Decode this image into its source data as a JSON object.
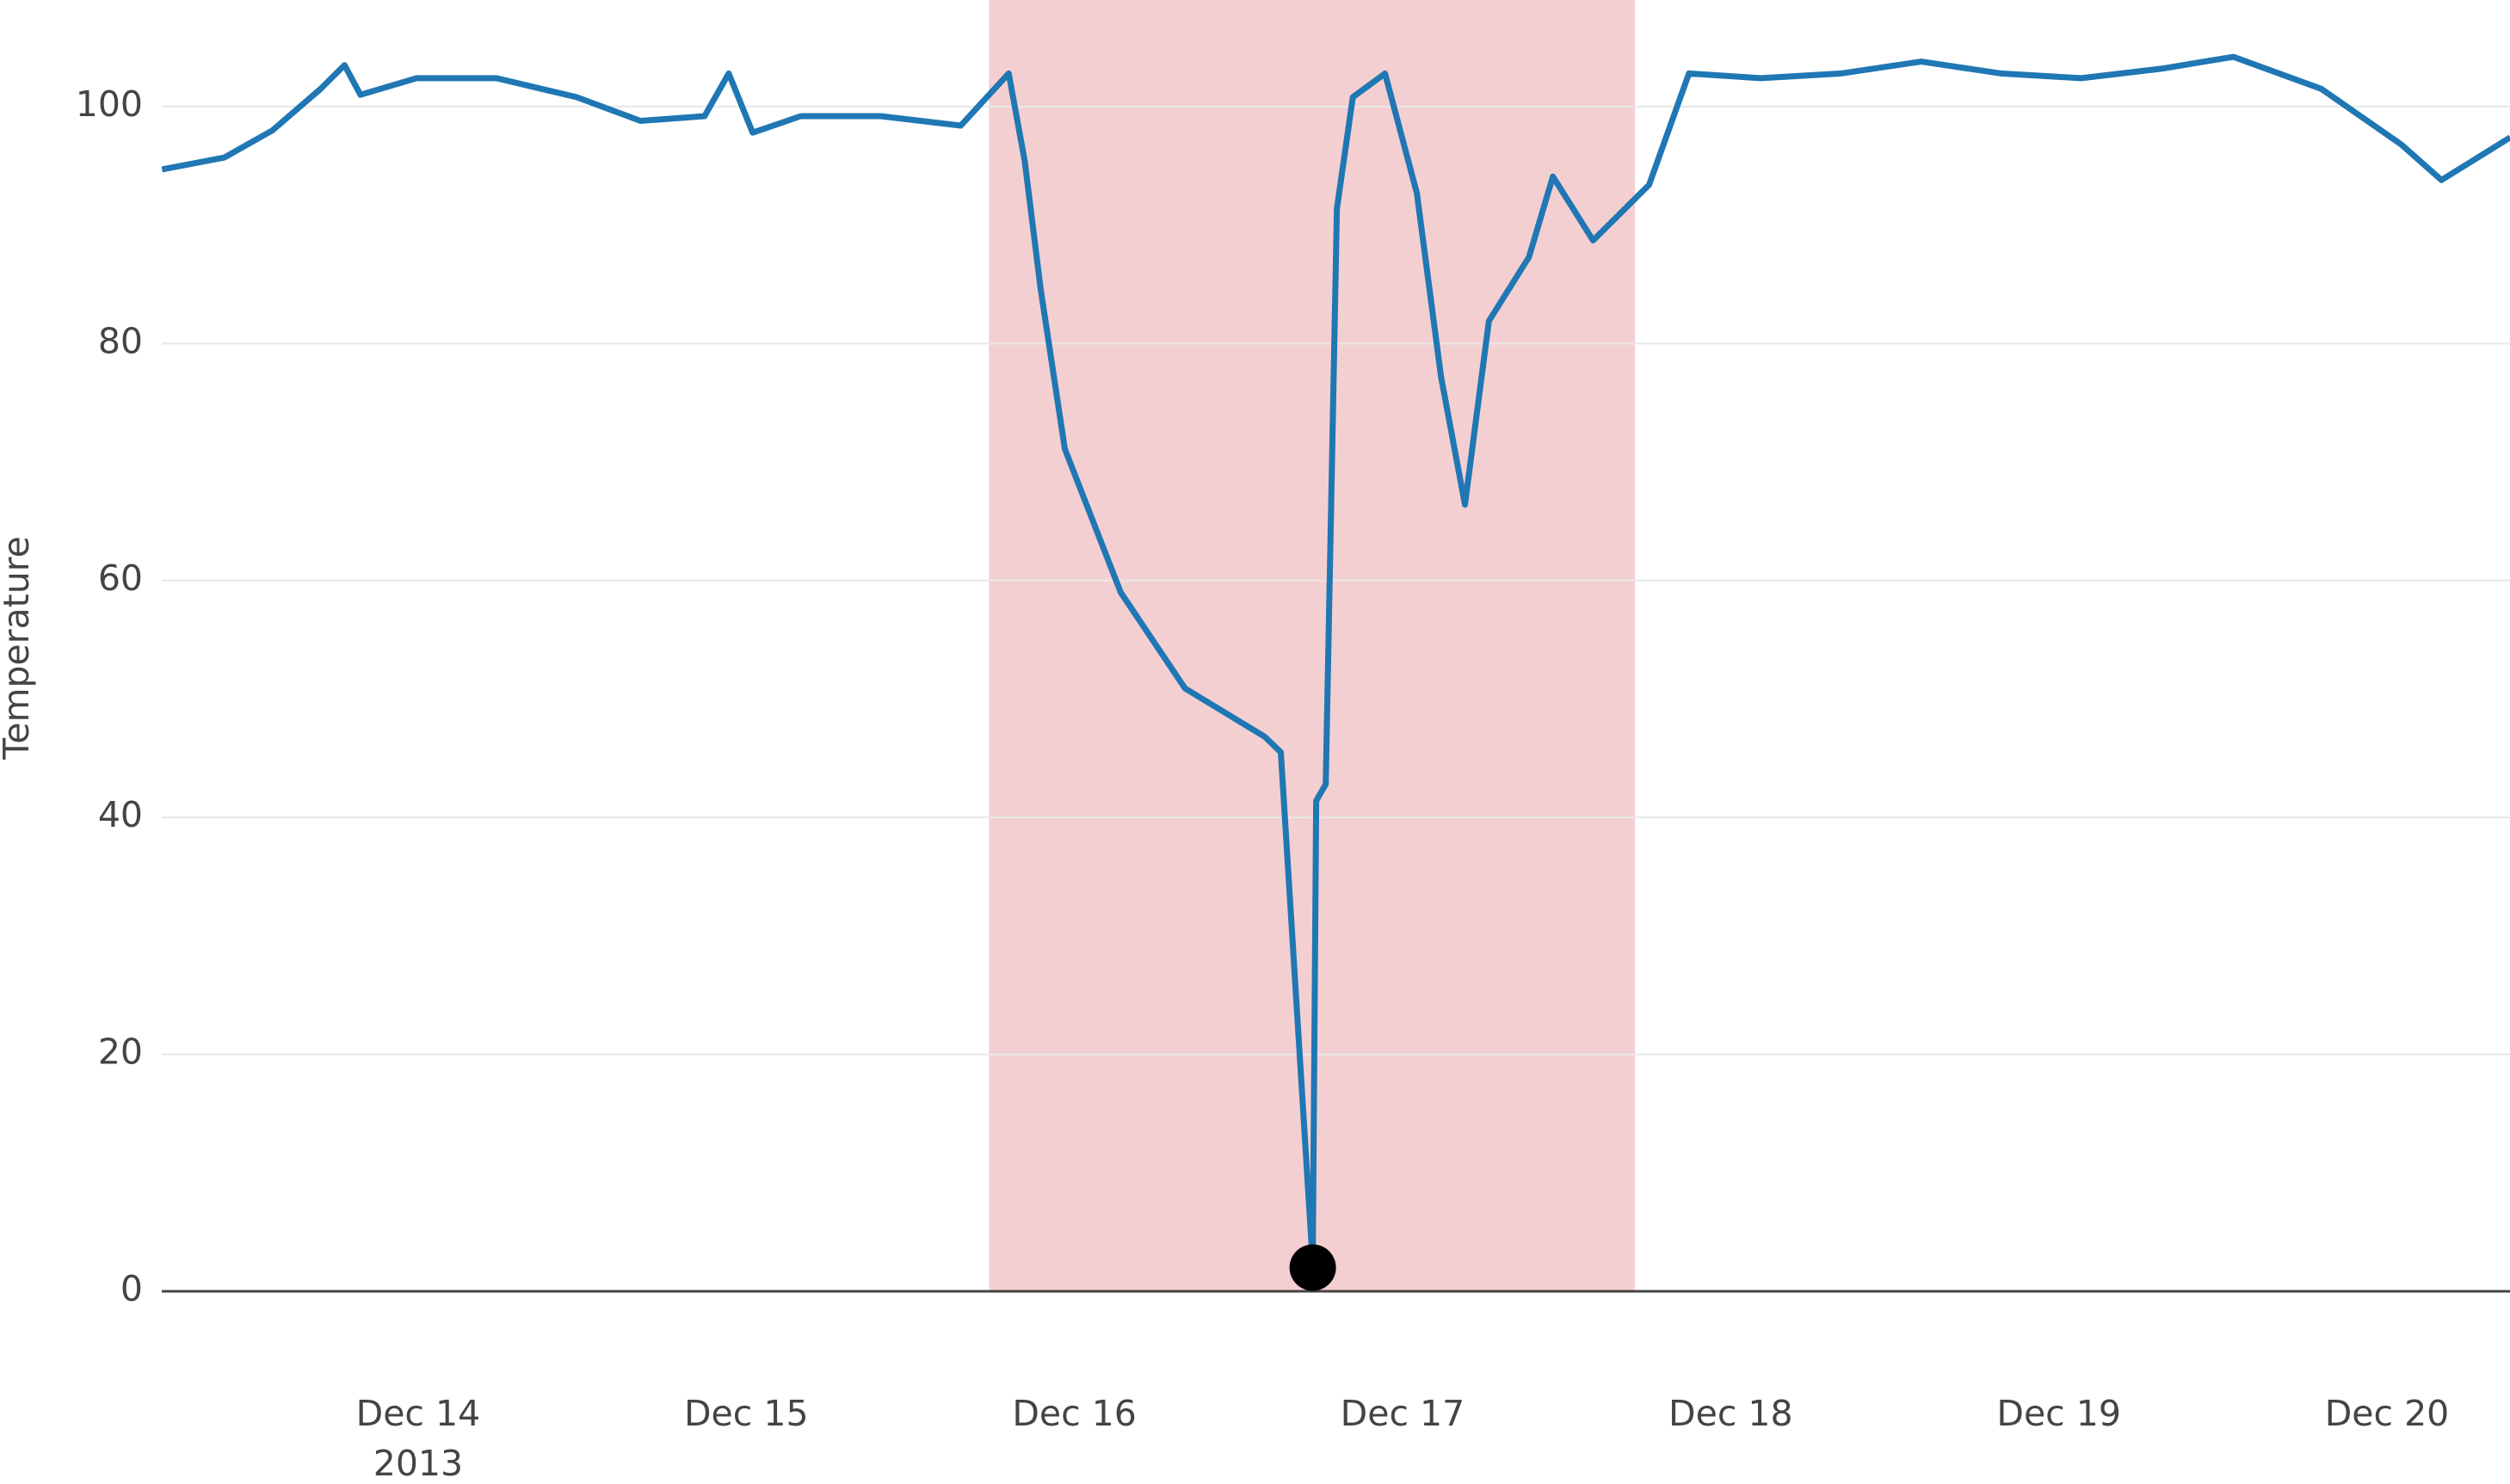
{
  "chart_data": {
    "type": "line",
    "y_label": "Temperature",
    "ylim": [
      0,
      109
    ],
    "yticks": [
      0,
      20,
      40,
      60,
      80,
      100
    ],
    "grid": true,
    "xlim": [
      "2013-12-13 05:15",
      "2013-12-20 09:00"
    ],
    "xticks": [
      {
        "value": "2013-12-14 00:00",
        "label": "Dec 14"
      },
      {
        "value": "2013-12-15 00:00",
        "label": "Dec 15"
      },
      {
        "value": "2013-12-16 00:00",
        "label": "Dec 16"
      },
      {
        "value": "2013-12-17 00:00",
        "label": "Dec 17"
      },
      {
        "value": "2013-12-18 00:00",
        "label": "Dec 18"
      },
      {
        "value": "2013-12-19 00:00",
        "label": "Dec 19"
      },
      {
        "value": "2013-12-20 00:00",
        "label": "Dec 20"
      }
    ],
    "x_year_label": "2013",
    "highlight": {
      "x0": "2013-12-15 17:45",
      "x1": "2013-12-17 17:00",
      "color": "#f4cfd1"
    },
    "series": [
      {
        "color": "#1f77b4",
        "x": [
          "2013-12-13 05:16",
          "2013-12-13 09:50",
          "2013-12-13 13:21",
          "2013-12-13 16:52",
          "2013-12-13 18:37",
          "2013-12-13 19:47",
          "2013-12-13 23:53",
          "2013-12-14 05:44",
          "2013-12-14 11:35",
          "2013-12-14 16:16",
          "2013-12-14 20:57",
          "2013-12-14 22:43",
          "2013-12-15 00:28",
          "2013-12-15 03:59",
          "2013-12-15 09:50",
          "2013-12-15 15:41",
          "2013-12-15 19:12",
          "2013-12-15 20:22",
          "2013-12-15 21:32",
          "2013-12-15 23:18",
          "2013-12-16 03:23",
          "2013-12-16 08:05",
          "2013-12-16 13:56",
          "2013-12-16 15:06",
          "2013-12-16 17:26",
          "2013-12-16 17:41",
          "2013-12-16 18:23",
          "2013-12-16 19:12",
          "2013-12-16 20:22",
          "2013-12-16 22:43",
          "2013-12-17 01:03",
          "2013-12-17 02:49",
          "2013-12-17 04:34",
          "2013-12-17 06:19",
          "2013-12-17 09:15",
          "2013-12-17 11:00",
          "2013-12-17 13:56",
          "2013-12-17 18:02",
          "2013-12-17 20:57",
          "2013-12-18 02:13",
          "2013-12-18 08:04",
          "2013-12-18 13:56",
          "2013-12-18 19:47",
          "2013-12-19 01:38",
          "2013-12-19 07:29",
          "2013-12-19 12:46",
          "2013-12-19 19:12",
          "2013-12-20 01:03",
          "2013-12-20 03:59",
          "2013-12-20 09:01"
        ],
        "values": [
          94.7,
          95.7,
          98,
          101.5,
          103.5,
          101,
          102.4,
          102.4,
          100.8,
          98.8,
          99.2,
          102.8,
          97.8,
          99.2,
          99.2,
          98.4,
          102.8,
          95.4,
          84.6,
          71.1,
          59,
          50.9,
          46.8,
          45.5,
          2.3,
          41.4,
          42.8,
          91.4,
          100.8,
          102.8,
          92.7,
          77.2,
          66.4,
          81.9,
          87.3,
          94.1,
          88.7,
          93.4,
          102.8,
          102.4,
          102.8,
          103.8,
          102.8,
          102.4,
          103.2,
          104.2,
          101.5,
          96.8,
          93.8,
          97.4
        ]
      }
    ],
    "markers": {
      "color": "#000000",
      "x": [
        "2013-12-16 17:26"
      ],
      "values": [
        2
      ]
    }
  }
}
